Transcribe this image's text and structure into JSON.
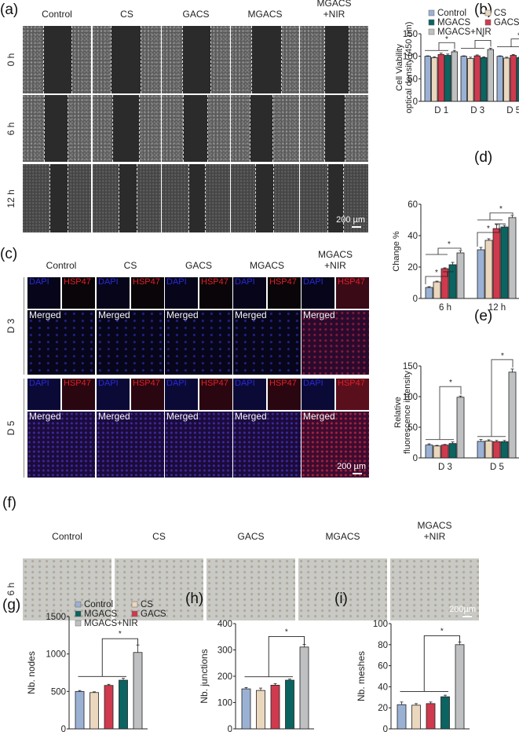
{
  "figure": {
    "panels": {
      "a": {
        "label": "(a)"
      },
      "b": {
        "label": "(b)"
      },
      "c": {
        "label": "(c)"
      },
      "d": {
        "label": "(d)"
      },
      "e": {
        "label": "(e)"
      },
      "f": {
        "label": "(f)"
      },
      "g": {
        "label": "(g)"
      },
      "h": {
        "label": "(h)"
      },
      "i": {
        "label": "(i)"
      }
    },
    "groups": [
      "Control",
      "CS",
      "GACS",
      "MGACS",
      "MGACS +NIR"
    ],
    "group_lines": [
      [
        "Control"
      ],
      [
        "CS"
      ],
      [
        "GACS"
      ],
      [
        "MGACS"
      ],
      [
        "MGACS",
        "+NIR"
      ]
    ],
    "colors": {
      "Control": "#9bb1d4",
      "CS": "#ead7bd",
      "GACS": "#cf3a4e",
      "MGACS": "#0b6461",
      "MGACS+NIR": "#bfc0c2"
    },
    "panel_a": {
      "rows": [
        "0 h",
        "6 h",
        "12 h"
      ],
      "scale_bar": "200 µm"
    },
    "panel_c": {
      "rows": [
        "D 3",
        "D 5"
      ],
      "channel_labels": {
        "dapi": "DAPI",
        "hsp47": "HSP47",
        "merged": "Merged"
      },
      "scale_bar": "200 µm"
    },
    "panel_f": {
      "rows": [
        "6 h"
      ],
      "scale_bar": "200µm"
    },
    "legend": {
      "entries": [
        {
          "name": "Control",
          "color": "#9bb1d4"
        },
        {
          "name": "CS",
          "color": "#ead7bd"
        },
        {
          "name": "MGACS",
          "color": "#0b6461"
        },
        {
          "name": "GACS",
          "color": "#cf3a4e"
        },
        {
          "name": "MGACS+NIR",
          "color": "#bfc0c2"
        }
      ]
    },
    "significance_marker": "*"
  },
  "chart_data": [
    {
      "id": "b",
      "type": "bar",
      "title": "",
      "xlabel": "",
      "ylabel": "Cell Viability optical density (450 nm)",
      "ylabel_lines": [
        "Cell Viability",
        "optical density (450 nm)"
      ],
      "ylim": [
        0,
        150
      ],
      "yticks": [
        0,
        50,
        100,
        150
      ],
      "categories": [
        "D 1",
        "D 3",
        "D 5"
      ],
      "series": [
        {
          "name": "Control",
          "values": [
            100,
            100,
            100
          ],
          "errors": [
            1,
            1,
            1
          ]
        },
        {
          "name": "CS",
          "values": [
            97,
            95,
            96
          ],
          "errors": [
            2,
            3,
            2
          ]
        },
        {
          "name": "GACS",
          "values": [
            104,
            101,
            102
          ],
          "errors": [
            3,
            2,
            2
          ]
        },
        {
          "name": "MGACS",
          "values": [
            102,
            97,
            97
          ],
          "errors": [
            3,
            2,
            2
          ]
        },
        {
          "name": "MGACS+NIR",
          "values": [
            110,
            115,
            118
          ],
          "errors": [
            3,
            3,
            3
          ]
        }
      ],
      "legend_position": "top",
      "annotations": [
        "* D 1",
        "* D 3",
        "* D 5"
      ]
    },
    {
      "id": "d",
      "type": "bar",
      "title": "",
      "xlabel": "",
      "ylabel": "Change %",
      "ylim": [
        0,
        60
      ],
      "yticks": [
        0,
        20,
        40,
        60
      ],
      "categories": [
        "6 h",
        "12 h"
      ],
      "series": [
        {
          "name": "Control",
          "values": [
            7,
            31
          ],
          "errors": [
            0.5,
            1.5
          ]
        },
        {
          "name": "CS",
          "values": [
            10.5,
            37
          ],
          "errors": [
            0.5,
            1
          ]
        },
        {
          "name": "GACS",
          "values": [
            19,
            44.5
          ],
          "errors": [
            0.5,
            2.5
          ]
        },
        {
          "name": "MGACS",
          "values": [
            21.5,
            45.5
          ],
          "errors": [
            1.5,
            1
          ]
        },
        {
          "name": "MGACS+NIR",
          "values": [
            29,
            51.5
          ],
          "errors": [
            1.5,
            1.5
          ]
        }
      ],
      "annotations": [
        "*",
        "*",
        "*",
        "*"
      ]
    },
    {
      "id": "e",
      "type": "bar",
      "title": "",
      "xlabel": "",
      "ylabel": "Relative fluorescence intensity",
      "ylabel_lines": [
        "Relative",
        "fluorescence intensity"
      ],
      "ylim": [
        0,
        150
      ],
      "yticks": [
        0,
        50,
        100,
        150
      ],
      "categories": [
        "D 3",
        "D 5"
      ],
      "series": [
        {
          "name": "Control",
          "values": [
            21,
            27
          ],
          "errors": [
            2,
            3
          ]
        },
        {
          "name": "CS",
          "values": [
            19.5,
            27.5
          ],
          "errors": [
            1,
            2
          ]
        },
        {
          "name": "GACS",
          "values": [
            21,
            26.5
          ],
          "errors": [
            1,
            2
          ]
        },
        {
          "name": "MGACS",
          "values": [
            23.5,
            26.5
          ],
          "errors": [
            2.5,
            2
          ]
        },
        {
          "name": "MGACS+NIR",
          "values": [
            99,
            140
          ],
          "errors": [
            2,
            5
          ]
        }
      ],
      "annotations": [
        "*",
        "*"
      ]
    },
    {
      "id": "g",
      "type": "bar",
      "title": "",
      "xlabel": "",
      "ylabel": "Nb. nodes",
      "ylim": [
        0,
        1500
      ],
      "yticks": [
        0,
        500,
        1000,
        1500
      ],
      "categories": [
        "Control",
        "CS",
        "GACS",
        "MGACS",
        "MGACS+NIR"
      ],
      "values": [
        500,
        485,
        580,
        650,
        1020
      ],
      "errors": [
        12,
        10,
        15,
        25,
        100
      ],
      "legend_position": "top",
      "annotations": [
        "*"
      ]
    },
    {
      "id": "h",
      "type": "bar",
      "title": "",
      "xlabel": "",
      "ylabel": "Nb. junctions",
      "ylim": [
        0,
        400
      ],
      "yticks": [
        0,
        100,
        200,
        300,
        400
      ],
      "categories": [
        "Control",
        "CS",
        "GACS",
        "MGACS",
        "MGACS+NIR"
      ],
      "values": [
        152,
        146,
        166,
        185,
        311
      ],
      "errors": [
        5,
        9,
        6,
        4,
        10
      ],
      "annotations": [
        "*"
      ]
    },
    {
      "id": "i",
      "type": "bar",
      "title": "",
      "xlabel": "",
      "ylabel": "Nb. meshes",
      "ylim": [
        0,
        100
      ],
      "yticks": [
        0,
        20,
        40,
        60,
        80,
        100
      ],
      "categories": [
        "Control",
        "CS",
        "GACS",
        "MGACS",
        "MGACS+NIR"
      ],
      "values": [
        23,
        22.5,
        24,
        30.5,
        80
      ],
      "errors": [
        2.5,
        1.5,
        1.5,
        1.5,
        2.5
      ],
      "annotations": [
        "*"
      ]
    }
  ]
}
